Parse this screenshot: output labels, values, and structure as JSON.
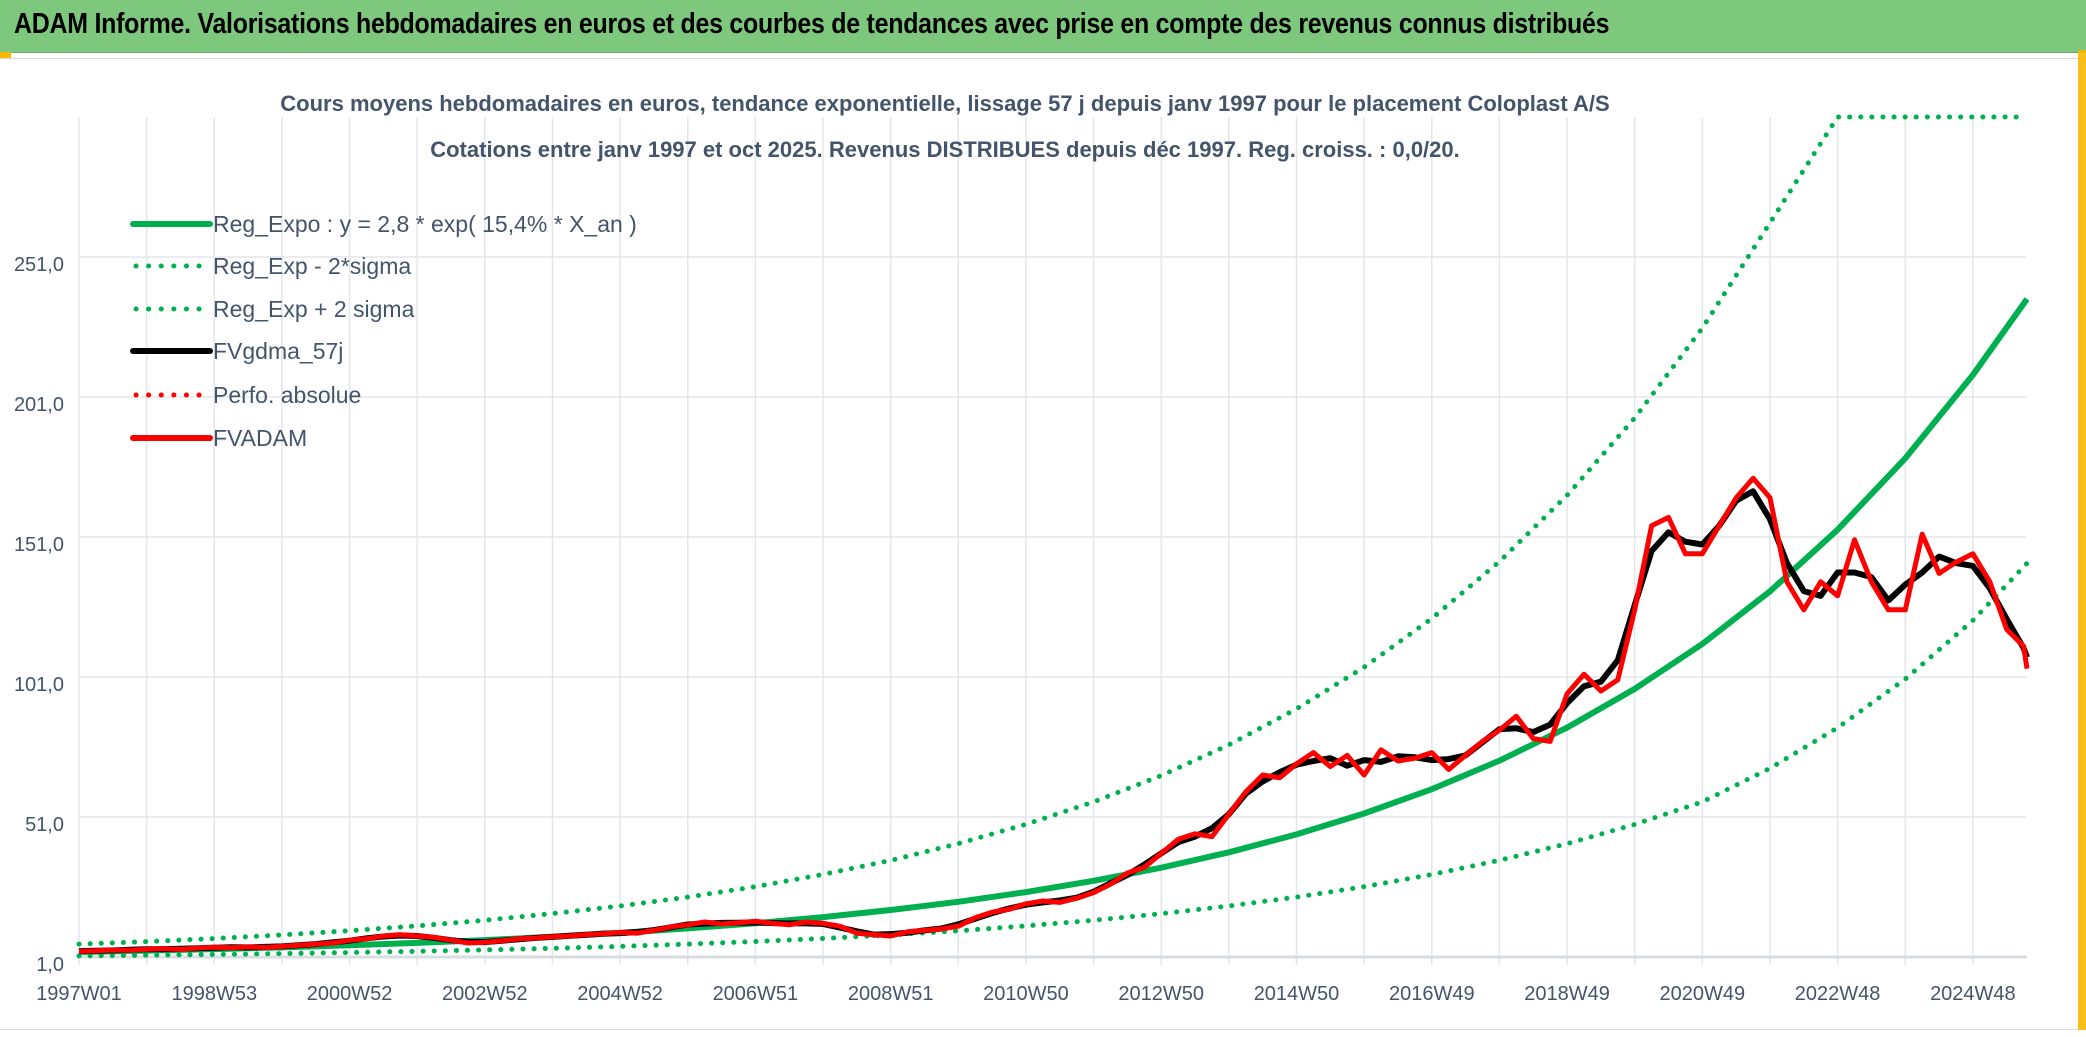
{
  "header": {
    "title": "ADAM Informe. Valorisations hebdomadaires en euros et des courbes de tendances avec prise en compte des revenus connus distribués"
  },
  "chart_data": {
    "type": "line",
    "title": "Cours moyens hebdomadaires en euros, tendance exponentielle, lissage 57 j depuis janv 1997 pour le placement Coloplast A/S",
    "subtitle": "Cotations entre janv 1997 et oct 2025. Revenus DISTRIBUES depuis déc 1997. Reg. croiss. : 0,0/20.",
    "xlabel": "",
    "ylabel": "",
    "x_unit": "years since 1997W01",
    "xlim": [
      0,
      28.8
    ],
    "ylim": [
      1,
      301
    ],
    "grid": true,
    "legend_position": "top-left",
    "y_ticks": [
      "1,0",
      "51,0",
      "101,0",
      "151,0",
      "201,0",
      "251,0"
    ],
    "y_tick_values": [
      1,
      51,
      101,
      151,
      201,
      251
    ],
    "x_ticks": [
      "1997W01",
      "1998W53",
      "2000W52",
      "2002W52",
      "2004W52",
      "2006W51",
      "2008W51",
      "2010W50",
      "2012W50",
      "2014W50",
      "2016W49",
      "2018W49",
      "2020W49",
      "2022W48",
      "2024W48"
    ],
    "legend": [
      {
        "label": "Reg_Expo : y = 2,8 * exp( 15,4% *  X_an )",
        "color": "#00b050",
        "style": "solid"
      },
      {
        "label": "Reg_Exp - 2*sigma",
        "color": "#00b050",
        "style": "dotted"
      },
      {
        "label": "Reg_Exp + 2 sigma",
        "color": "#00b050",
        "style": "dotted"
      },
      {
        "label": "FVgdma_57j",
        "color": "#000000",
        "style": "solid"
      },
      {
        "label": "Perfo. absolue",
        "color": "#ff0000",
        "style": "dotted"
      },
      {
        "label": "FVADAM",
        "color": "#ff0000",
        "style": "solid"
      }
    ],
    "trend_x": [
      0,
      1,
      2,
      3,
      4,
      5,
      6,
      7,
      8,
      9,
      10,
      11,
      12,
      13,
      14,
      15,
      16,
      17,
      18,
      19,
      20,
      21,
      22,
      23,
      24,
      25,
      26,
      27,
      28,
      28.8
    ],
    "reg_expo": [
      2.8,
      3.27,
      3.81,
      4.44,
      5.18,
      6.05,
      7.05,
      8.23,
      9.6,
      11.2,
      13.06,
      15.24,
      17.77,
      20.73,
      24.19,
      28.21,
      32.91,
      38.39,
      44.79,
      52.24,
      60.94,
      71.09,
      82.93,
      96.74,
      112.8,
      131.6,
      153.6,
      179.1,
      208.9,
      236
    ],
    "reg_exp_minus_2sigma": [
      1.4,
      1.64,
      1.91,
      2.22,
      2.59,
      3.03,
      3.53,
      4.12,
      4.8,
      5.6,
      6.53,
      7.62,
      8.89,
      10.37,
      12.1,
      14.11,
      16.46,
      19.2,
      22.4,
      26.12,
      30.47,
      35.55,
      41.47,
      48.37,
      56.4,
      68.4,
      82.9,
      100.3,
      121.2,
      141.6
    ],
    "reg_exp_plus_2sigma": [
      5.6,
      6.5,
      7.6,
      8.9,
      10.4,
      12.1,
      14.1,
      16.5,
      19.2,
      22.4,
      26.1,
      30.5,
      35.5,
      41.5,
      48.4,
      56.4,
      65.8,
      76.8,
      89.6,
      104.5,
      121.9,
      142.2,
      165.9,
      193.5,
      225.6,
      263.2,
      301,
      301,
      301,
      301
    ],
    "fvadam_step_years": 0.25,
    "fvadam": [
      3,
      3.2,
      3.5,
      3.4,
      3.8,
      4,
      3.7,
      4.2,
      4.5,
      4.3,
      4.6,
      4.4,
      4.8,
      5.2,
      5.6,
      6,
      7,
      7.5,
      8.5,
      9,
      8.5,
      8,
      7,
      6,
      6.2,
      6.8,
      7.5,
      7.8,
      8.2,
      8.5,
      9,
      9.3,
      9.8,
      9.5,
      10.5,
      11.8,
      12.5,
      13.5,
      12.8,
      13.2,
      13.8,
      13,
      12.5,
      13.5,
      13,
      12,
      9.5,
      9,
      8.5,
      10,
      10.5,
      11,
      12,
      15,
      17,
      18,
      20,
      21,
      20.5,
      22,
      24,
      27,
      31,
      33,
      38,
      43,
      45,
      44,
      52,
      60,
      66,
      65,
      70,
      74,
      69,
      73,
      66,
      75,
      71,
      72,
      74,
      68,
      73,
      78,
      82,
      87,
      79,
      78,
      95,
      102,
      96,
      100,
      125,
      155,
      158,
      145,
      145,
      155,
      165,
      172,
      165,
      135,
      125,
      135,
      130,
      150,
      135,
      125,
      125,
      152,
      138,
      142,
      145,
      135,
      118,
      112,
      104
    ]
  }
}
